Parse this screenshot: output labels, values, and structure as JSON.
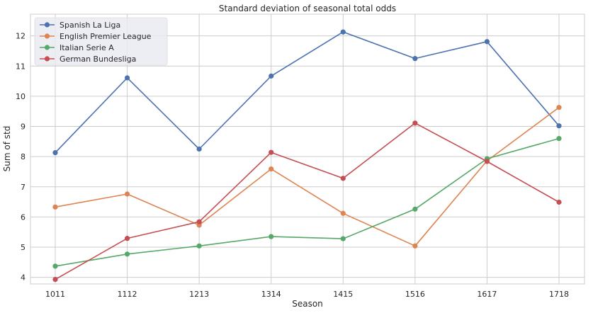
{
  "chart_data": {
    "type": "line",
    "title": "Standard deviation of seasonal total odds",
    "xlabel": "Season",
    "ylabel": "Sum of std",
    "categories": [
      "1011",
      "1112",
      "1213",
      "1314",
      "1415",
      "1516",
      "1617",
      "1718"
    ],
    "yticks": [
      "4",
      "5",
      "6",
      "7",
      "8",
      "9",
      "10",
      "11",
      "12"
    ],
    "ylim": [
      3.78,
      12.72
    ],
    "grid": true,
    "legend_position": "top-left",
    "series": [
      {
        "name": "Spanish La Liga",
        "color": "#4c72b0",
        "values": [
          8.13,
          10.61,
          8.25,
          10.67,
          12.13,
          11.25,
          11.81,
          9.02
        ]
      },
      {
        "name": "English Premier League",
        "color": "#dd8452",
        "values": [
          6.33,
          6.76,
          5.73,
          7.59,
          6.12,
          5.04,
          7.86,
          9.63
        ]
      },
      {
        "name": "Italian Serie A",
        "color": "#55a868",
        "values": [
          4.37,
          4.77,
          5.04,
          5.35,
          5.28,
          6.26,
          7.93,
          8.6
        ]
      },
      {
        "name": "German Bundesliga",
        "color": "#c44e52",
        "values": [
          3.93,
          5.29,
          5.84,
          8.14,
          7.28,
          9.11,
          7.84,
          6.49
        ]
      }
    ]
  }
}
